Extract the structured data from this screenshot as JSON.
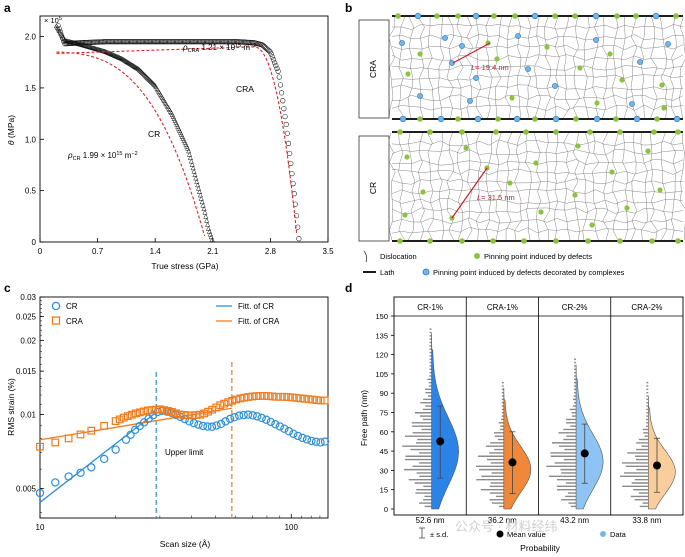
{
  "panels": {
    "a": {
      "letter": "a",
      "sci_multiplier": "× 10",
      "sci_exp": "5",
      "ylabel_theta": "θ",
      "ylabel_unit": " (MPa)",
      "xlabel": "True stress (GPa)",
      "yticks": [
        "0",
        "0.5",
        "1.0",
        "1.5",
        "2.0"
      ],
      "xticks": [
        "0",
        "0.7",
        "1.4",
        "2.1",
        "2.8",
        "3.5"
      ],
      "cra_rho_prefix": "ρ",
      "cra_rho_sub": "CRA",
      "cra_rho_value": " 1.21 × 10",
      "cra_rho_exp": "15",
      "cra_rho_unit": " m",
      "cra_rho_unit_exp": "−2",
      "cra_label": "CRA",
      "cr_label": "CR",
      "cr_rho_prefix": "ρ",
      "cr_rho_sub": "CR",
      "cr_rho_value": " 1.99 × 10",
      "cr_rho_exp": "15",
      "cr_rho_unit": " m",
      "cr_rho_unit_exp": "−2"
    },
    "b": {
      "letter": "b",
      "cra_label": "CRA",
      "cr_label": "CR",
      "cra_spacing": "= 19.4 nm",
      "cr_spacing": "= 31.5 nm",
      "spacing_symbol": "L",
      "legend_dislocation": "Dislocation",
      "legend_pin_defects": "Pinning point induced by defects",
      "legend_lath": "Lath",
      "legend_pin_complex": "Pinning point induced by defects decorated by complexes"
    },
    "c": {
      "letter": "c",
      "ylabel": "RMS strain (%)",
      "xlabel": "Scan size (Å)",
      "yticks": [
        "0.005",
        "0.01",
        "0.015",
        "0.02",
        "0.025",
        "0.03"
      ],
      "xticks": [
        "10",
        "100"
      ],
      "legend_cr": "CR",
      "legend_cra": "CRA",
      "legend_fit_cr": "Fitt. of CR",
      "legend_fit_cra": "Fitt. of CRA",
      "upper_limit": "Upper limit",
      "colors": {
        "cr": "#2f8fd8",
        "cra": "#f07c1e"
      }
    },
    "d": {
      "letter": "d",
      "ylabel": "Free path (nm)",
      "xlabel": "Probability",
      "yticks": [
        "0",
        "15",
        "30",
        "45",
        "60",
        "75",
        "90",
        "105",
        "120",
        "135",
        "150"
      ],
      "groups": [
        {
          "name": "CR-1%",
          "mean_label": "52.6 nm",
          "mean": 52.6,
          "lo": 24,
          "hi": 80,
          "color": "#2b83e6"
        },
        {
          "name": "CRA-1%",
          "mean_label": "36.2 nm",
          "mean": 36.2,
          "lo": 12,
          "hi": 60,
          "color": "#f0883a"
        },
        {
          "name": "CR-2%",
          "mean_label": "43.2 nm",
          "mean": 43.2,
          "lo": 20,
          "hi": 66,
          "color": "#8ec4f4"
        },
        {
          "name": "CRA-2%",
          "mean_label": "33.8 nm",
          "mean": 33.8,
          "lo": 13,
          "hi": 55,
          "color": "#f8cf9c"
        }
      ],
      "legend_sd": "± s.d.",
      "legend_mean": "Mean value",
      "legend_data": "Data"
    }
  },
  "watermark": "公众号 · 材料经纬",
  "chart_data": [
    {
      "type": "scatter",
      "panel": "a",
      "xlabel": "True stress (GPa)",
      "ylabel": "θ (MPa)",
      "xlim": [
        0,
        3.5
      ],
      "ylim": [
        0,
        220000
      ],
      "series": [
        {
          "name": "CRA",
          "x": [
            0.2,
            0.3,
            0.5,
            0.8,
            1.2,
            1.6,
            2.0,
            2.4,
            2.6,
            2.7,
            2.8,
            2.9,
            3.0,
            3.1,
            3.15
          ],
          "y": [
            215000,
            193000,
            194000,
            195000,
            195000,
            195000,
            195000,
            195000,
            194000,
            192000,
            185000,
            165000,
            110000,
            40000,
            0
          ]
        },
        {
          "name": "CR",
          "x": [
            0.2,
            0.3,
            0.5,
            0.8,
            1.0,
            1.2,
            1.4,
            1.6,
            1.8,
            1.9,
            2.0,
            2.05,
            2.1
          ],
          "y": [
            210000,
            196000,
            192000,
            185000,
            178000,
            168000,
            152000,
            125000,
            90000,
            60000,
            30000,
            12000,
            0
          ]
        }
      ]
    },
    {
      "type": "scatter",
      "panel": "c",
      "xlabel": "Scan size (Å)",
      "ylabel": "RMS strain (%)",
      "xscale": "log",
      "yscale": "log",
      "xlim": [
        10,
        140
      ],
      "ylim": [
        0.0038,
        0.03
      ],
      "series": [
        {
          "name": "CR",
          "x": [
            10,
            11.5,
            13,
            14.5,
            16,
            18,
            20,
            22,
            24,
            27,
            30,
            33,
            36,
            40,
            44,
            48,
            52,
            57,
            62,
            68,
            74,
            80,
            87,
            95,
            103,
            112,
            121,
            130,
            140
          ],
          "y": [
            0.0048,
            0.0053,
            0.0056,
            0.0058,
            0.0061,
            0.0066,
            0.0072,
            0.0079,
            0.0087,
            0.0096,
            0.0104,
            0.0102,
            0.0098,
            0.0093,
            0.009,
            0.0089,
            0.0091,
            0.0096,
            0.0099,
            0.01,
            0.0098,
            0.0095,
            0.0091,
            0.0087,
            0.0083,
            0.008,
            0.0078,
            0.0077,
            0.0078
          ]
        },
        {
          "name": "CRA",
          "x": [
            10,
            11.5,
            13,
            14.5,
            16,
            18,
            20,
            22,
            24,
            27,
            30,
            33,
            36,
            40,
            44,
            48,
            52,
            57,
            62,
            68,
            74,
            80,
            87,
            95,
            103,
            112,
            121,
            130,
            140
          ],
          "y": [
            0.0074,
            0.0077,
            0.008,
            0.0083,
            0.0086,
            0.009,
            0.0094,
            0.0098,
            0.0101,
            0.0104,
            0.0105,
            0.0103,
            0.01,
            0.0099,
            0.01,
            0.0104,
            0.0109,
            0.0113,
            0.0116,
            0.0118,
            0.0119,
            0.0119,
            0.0118,
            0.0118,
            0.0117,
            0.0116,
            0.0115,
            0.0114,
            0.0114
          ]
        }
      ]
    },
    {
      "type": "violin",
      "panel": "d",
      "categories": [
        "CR-1%",
        "CRA-1%",
        "CR-2%",
        "CRA-2%"
      ],
      "mean": [
        52.6,
        36.2,
        43.2,
        33.8
      ],
      "ylim": [
        0,
        150
      ],
      "ylabel": "Free path (nm)"
    }
  ]
}
